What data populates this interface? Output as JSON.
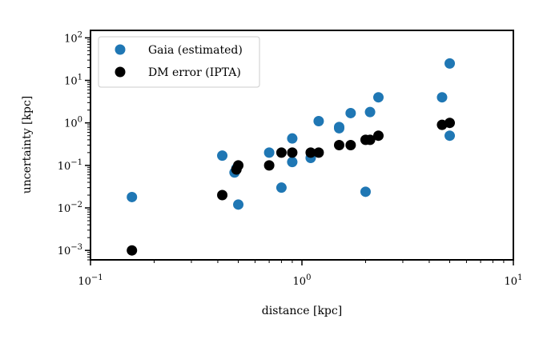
{
  "chart_data": {
    "type": "scatter",
    "title": "",
    "xlabel": "distance [kpc]",
    "ylabel": "uncertainty [kpc]",
    "x_scale": "log",
    "y_scale": "log",
    "xlim": [
      0.1,
      10
    ],
    "ylim": [
      0.0006,
      150
    ],
    "grid": false,
    "legend_position": "top-left",
    "x_ticks": [
      {
        "value": 0.1,
        "base": "10",
        "exp": "−1"
      },
      {
        "value": 1,
        "base": "10",
        "exp": "0"
      },
      {
        "value": 10,
        "base": "10",
        "exp": "1"
      }
    ],
    "y_ticks": [
      {
        "value": 0.001,
        "base": "10",
        "exp": "−3"
      },
      {
        "value": 0.01,
        "base": "10",
        "exp": "−2"
      },
      {
        "value": 0.1,
        "base": "10",
        "exp": "−1"
      },
      {
        "value": 1,
        "base": "10",
        "exp": "0"
      },
      {
        "value": 10,
        "base": "10",
        "exp": "1"
      },
      {
        "value": 100,
        "base": "10",
        "exp": "2"
      }
    ],
    "series": [
      {
        "name": "Gaia (estimated)",
        "color": "#1f77b4",
        "points": [
          {
            "x": 0.157,
            "y": 0.018
          },
          {
            "x": 0.42,
            "y": 0.17
          },
          {
            "x": 0.48,
            "y": 0.068
          },
          {
            "x": 0.49,
            "y": 0.085
          },
          {
            "x": 0.5,
            "y": 0.012
          },
          {
            "x": 0.7,
            "y": 0.2
          },
          {
            "x": 0.8,
            "y": 0.03
          },
          {
            "x": 0.9,
            "y": 0.43
          },
          {
            "x": 0.9,
            "y": 0.12
          },
          {
            "x": 1.1,
            "y": 0.15
          },
          {
            "x": 1.2,
            "y": 1.1
          },
          {
            "x": 1.5,
            "y": 0.8
          },
          {
            "x": 1.5,
            "y": 0.75
          },
          {
            "x": 1.7,
            "y": 1.7
          },
          {
            "x": 2.0,
            "y": 0.024
          },
          {
            "x": 2.1,
            "y": 1.8
          },
          {
            "x": 2.3,
            "y": 4.0
          },
          {
            "x": 4.6,
            "y": 4.0
          },
          {
            "x": 5.0,
            "y": 25
          },
          {
            "x": 5.0,
            "y": 0.5
          }
        ]
      },
      {
        "name": "DM error (IPTA)",
        "color": "#000000",
        "points": [
          {
            "x": 0.157,
            "y": 0.001
          },
          {
            "x": 0.42,
            "y": 0.02
          },
          {
            "x": 0.49,
            "y": 0.08
          },
          {
            "x": 0.5,
            "y": 0.1
          },
          {
            "x": 0.7,
            "y": 0.1
          },
          {
            "x": 0.8,
            "y": 0.2
          },
          {
            "x": 0.9,
            "y": 0.2
          },
          {
            "x": 1.1,
            "y": 0.2
          },
          {
            "x": 1.2,
            "y": 0.2
          },
          {
            "x": 1.5,
            "y": 0.3
          },
          {
            "x": 1.7,
            "y": 0.3
          },
          {
            "x": 2.0,
            "y": 0.4
          },
          {
            "x": 2.1,
            "y": 0.4
          },
          {
            "x": 2.3,
            "y": 0.5
          },
          {
            "x": 4.6,
            "y": 0.9
          },
          {
            "x": 5.0,
            "y": 1.0
          }
        ]
      }
    ]
  }
}
